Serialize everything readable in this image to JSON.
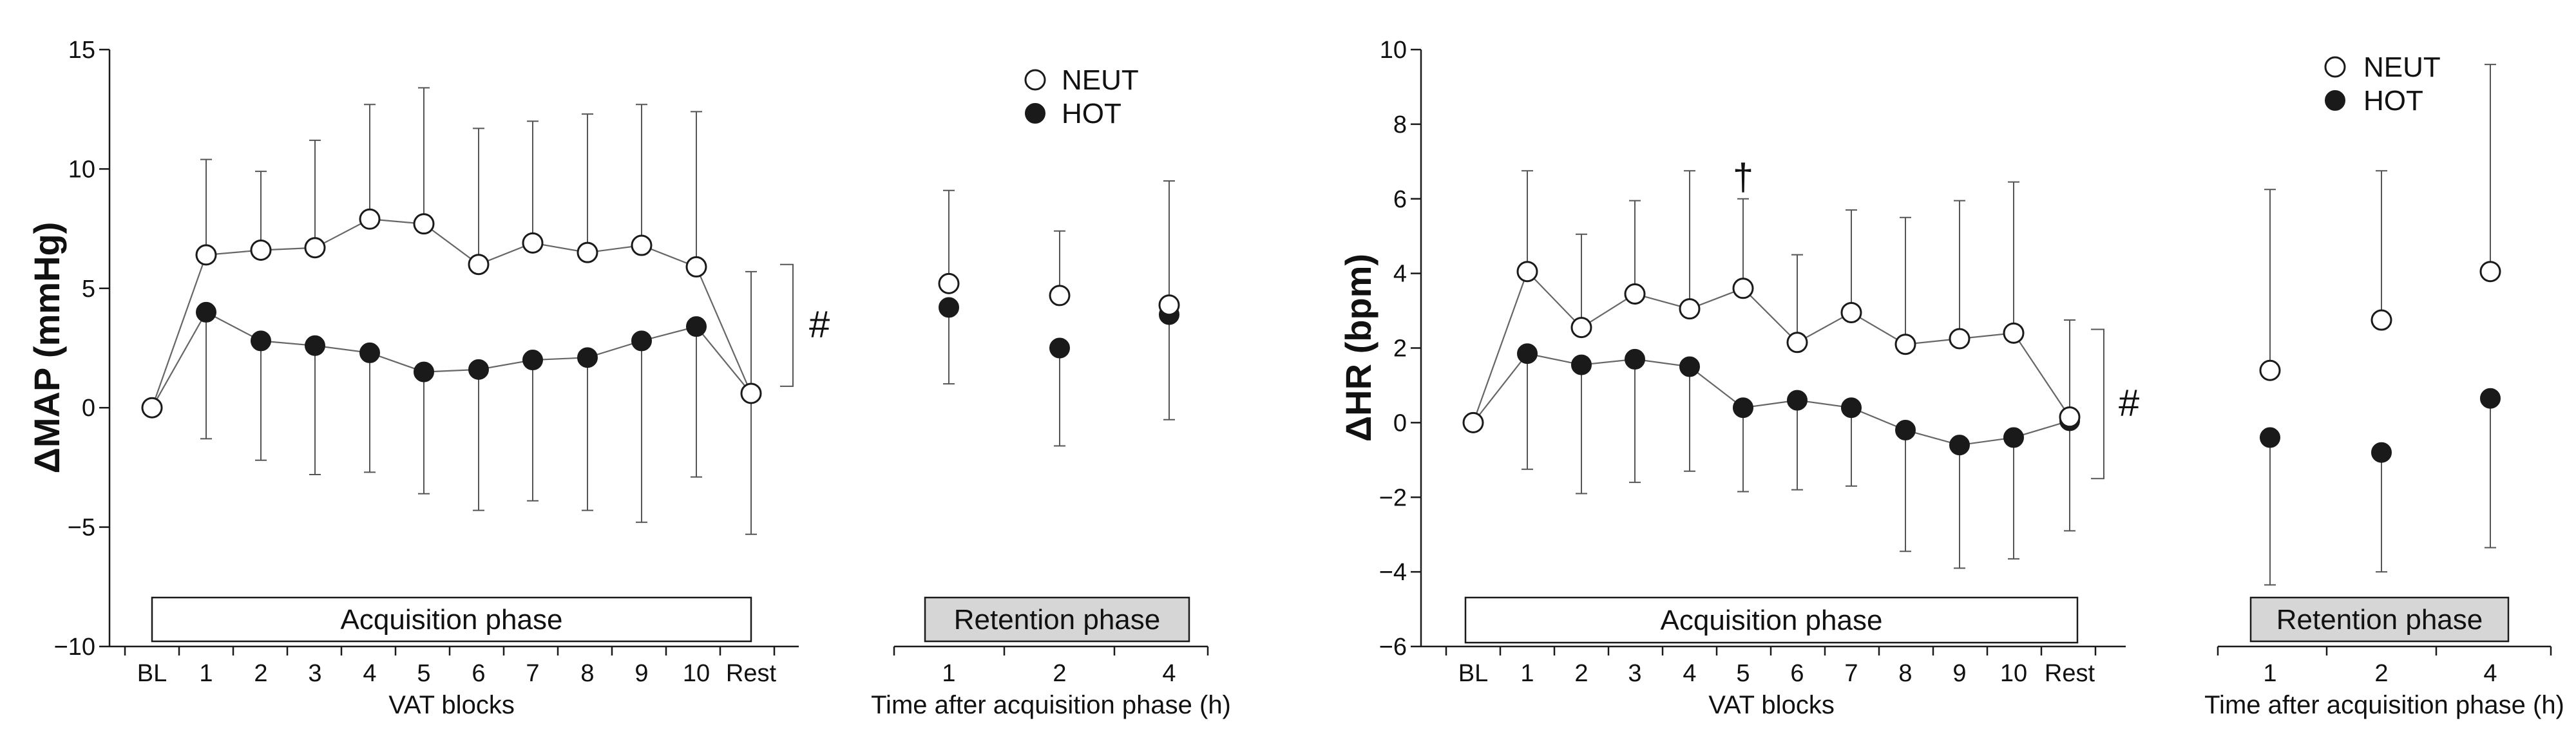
{
  "chart_data": [
    {
      "type": "line",
      "ylabel": "ΔMAP (mmHg)",
      "ylim": [
        -10,
        15
      ],
      "yticks": [
        -10,
        -5,
        0,
        5,
        10,
        15
      ],
      "significance_mark": "#",
      "legend": [
        "NEUT",
        "HOT"
      ],
      "acquisition": {
        "phase_label": "Acquisition phase",
        "xlabel": "VAT blocks",
        "categories": [
          "BL",
          "1",
          "2",
          "3",
          "4",
          "5",
          "6",
          "7",
          "8",
          "9",
          "10",
          "Rest"
        ],
        "series": [
          {
            "name": "NEUT",
            "values": [
              0,
              6.4,
              6.6,
              6.7,
              7.9,
              7.7,
              6.0,
              6.9,
              6.5,
              6.8,
              5.9,
              0.6
            ],
            "err_high": [
              null,
              10.4,
              9.9,
              11.2,
              12.7,
              13.4,
              11.7,
              12.0,
              12.3,
              12.7,
              12.4,
              5.7
            ]
          },
          {
            "name": "HOT",
            "values": [
              0,
              4.0,
              2.8,
              2.6,
              2.3,
              1.5,
              1.6,
              2.0,
              2.1,
              2.8,
              3.4,
              0.6
            ],
            "err_low": [
              null,
              -1.3,
              -2.2,
              -2.8,
              -2.7,
              -3.6,
              -4.3,
              -3.9,
              -4.3,
              -4.8,
              -2.9,
              -5.3
            ]
          }
        ]
      },
      "retention": {
        "phase_label": "Retention phase",
        "xlabel": "Time after acquisition phase (h)",
        "categories": [
          "1",
          "2",
          "4"
        ],
        "series": [
          {
            "name": "NEUT",
            "values": [
              5.2,
              4.7,
              4.3
            ],
            "err_high": [
              9.1,
              7.4,
              9.5
            ]
          },
          {
            "name": "HOT",
            "values": [
              4.2,
              2.5,
              3.9
            ],
            "err_low": [
              1.0,
              -1.6,
              -0.5
            ]
          }
        ]
      }
    },
    {
      "type": "line",
      "ylabel": "ΔHR (bpm)",
      "ylim": [
        -6,
        10
      ],
      "yticks": [
        -6,
        -4,
        -2,
        0,
        2,
        4,
        6,
        8,
        10
      ],
      "significance_mark": "#",
      "dagger_mark": "†",
      "dagger_category": "5",
      "legend": [
        "NEUT",
        "HOT"
      ],
      "acquisition": {
        "phase_label": "Acquisition phase",
        "xlabel": "VAT blocks",
        "categories": [
          "BL",
          "1",
          "2",
          "3",
          "4",
          "5",
          "6",
          "7",
          "8",
          "9",
          "10",
          "Rest"
        ],
        "series": [
          {
            "name": "NEUT",
            "values": [
              0,
              4.05,
              2.55,
              3.45,
              3.05,
              3.6,
              2.15,
              2.95,
              2.1,
              2.25,
              2.4,
              0.15
            ],
            "err_high": [
              null,
              6.75,
              5.05,
              5.95,
              6.75,
              6.0,
              4.5,
              5.7,
              5.5,
              5.95,
              6.45,
              2.75
            ]
          },
          {
            "name": "HOT",
            "values": [
              0,
              1.85,
              1.55,
              1.7,
              1.5,
              0.4,
              0.6,
              0.4,
              -0.2,
              -0.6,
              -0.4,
              0.05
            ],
            "err_low": [
              null,
              -1.25,
              -1.9,
              -1.6,
              -1.3,
              -1.85,
              -1.8,
              -1.7,
              -3.45,
              -3.9,
              -3.65,
              -2.9
            ]
          }
        ]
      },
      "retention": {
        "phase_label": "Retention phase",
        "xlabel": "Time after acquisition phase (h)",
        "categories": [
          "1",
          "2",
          "4"
        ],
        "series": [
          {
            "name": "NEUT",
            "values": [
              1.4,
              2.75,
              4.05
            ],
            "err_high": [
              6.25,
              6.75,
              9.6
            ]
          },
          {
            "name": "HOT",
            "values": [
              -0.4,
              -0.8,
              0.65
            ],
            "err_low": [
              -4.35,
              -4.0,
              -3.35
            ]
          }
        ]
      }
    }
  ]
}
